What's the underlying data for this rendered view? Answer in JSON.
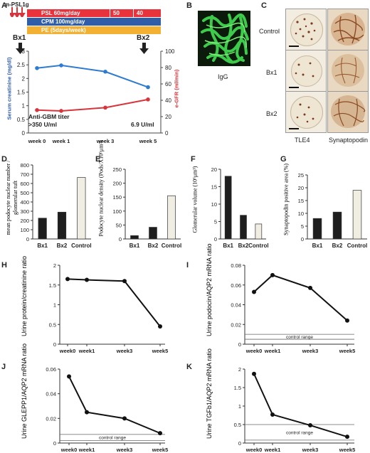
{
  "panels": {
    "A": "A",
    "B": "B",
    "C": "C",
    "D": "D",
    "E": "E",
    "F": "F",
    "G": "G",
    "H": "H",
    "I": "I",
    "J": "J",
    "K": "K"
  },
  "panel_a": {
    "mpsl": "m-PSL1g",
    "psl": "PSL 60mg/day",
    "psl50": "50",
    "psl40": "40",
    "cpm": "CPM 100mg/day",
    "pe": "PE (5days/week)",
    "bx1": "Bx1",
    "bx2": "Bx2",
    "anti_gbm_1": "Anti-GBM titer",
    "anti_gbm_2": ">350 U/ml",
    "anti_gbm_3": "6.9 U/ml",
    "colors": {
      "psl": "#e8323c",
      "cpm": "#2f5da8",
      "pe": "#f2b133"
    }
  },
  "panel_b": {
    "label": "IgG"
  },
  "panel_c": {
    "rows": [
      "Control",
      "Bx1",
      "Bx2"
    ],
    "cols": [
      "TLE4",
      "Synaptopodin"
    ]
  },
  "chart_data": [
    {
      "panel": "A",
      "type": "line",
      "categories": [
        "week 0",
        "week 1",
        "week 3",
        "week 5"
      ],
      "x": [
        0,
        1,
        3,
        5
      ],
      "ylabel": "Serum creatinine (mg/dl)",
      "y2label": "e-GFR (ml/min)",
      "ylim": [
        0,
        3
      ],
      "y2lim": [
        0,
        100
      ],
      "yticks": [
        "0",
        "0.5",
        "1",
        "1.5",
        "2",
        "2.5",
        "3"
      ],
      "y2ticks": [
        "0",
        "20",
        "40",
        "60",
        "80",
        "100"
      ],
      "series": [
        {
          "axis": "left",
          "color": "#2e7bcf",
          "values": [
            2.38,
            2.48,
            2.25,
            1.68
          ]
        },
        {
          "axis": "right",
          "color": "#d8343c",
          "values": [
            28,
            27,
            31,
            41
          ]
        }
      ]
    },
    {
      "panel": "D",
      "type": "bar",
      "categories": [
        "Bx1",
        "Bx2",
        "Control"
      ],
      "values": [
        225,
        290,
        665
      ],
      "ylabel": "mean podocyte nuclear number / glomerular tuft",
      "ylim": [
        0,
        800
      ],
      "yticks": [
        "0",
        "100",
        "200",
        "300",
        "400",
        "500",
        "600",
        "700",
        "800"
      ],
      "colors": [
        "#1e1e1e",
        "#1e1e1e",
        "#f0eee2"
      ]
    },
    {
      "panel": "E",
      "type": "bar",
      "categories": [
        "Bx1",
        "Bx2",
        "Control"
      ],
      "values": [
        12,
        42,
        155
      ],
      "ylabel": "Podocyte nuclear density (Pods/X10⁶μm³)",
      "ylim": [
        0,
        250
      ],
      "yticks": [
        "0",
        "50",
        "100",
        "150",
        "200",
        "250"
      ],
      "colors": [
        "#1e1e1e",
        "#1e1e1e",
        "#f0eee2"
      ]
    },
    {
      "panel": "F",
      "type": "bar",
      "categories": [
        "Bx1",
        "Bx2",
        "Control"
      ],
      "values": [
        18,
        6.8,
        4.3
      ],
      "ylabel": "Glomerular volume (10⁶μm³)",
      "ylim": [
        0,
        20
      ],
      "yticks": [
        "0",
        "5",
        "10",
        "15",
        "20"
      ],
      "colors": [
        "#1e1e1e",
        "#1e1e1e",
        "#f0eee2"
      ]
    },
    {
      "panel": "G",
      "type": "bar",
      "categories": [
        "Bx1",
        "Bx2",
        "Control"
      ],
      "values": [
        8,
        10.5,
        19
      ],
      "ylabel": "Synaptopodin positive area (%)",
      "ylim": [
        0,
        25
      ],
      "yticks": [
        "0",
        "5",
        "10",
        "15",
        "20",
        "25"
      ],
      "colors": [
        "#1e1e1e",
        "#1e1e1e",
        "#f0eee2"
      ]
    },
    {
      "panel": "H",
      "type": "line",
      "categories": [
        "week0",
        "week1",
        "week3",
        "week5"
      ],
      "x": [
        0,
        1,
        3,
        5
      ],
      "values": [
        1.65,
        1.63,
        1.6,
        0.45
      ],
      "ylabel": "Urine protein/creatinine ratio",
      "ylim": [
        0,
        2
      ],
      "yticks": [
        "0",
        "0.5",
        "1",
        "1.5",
        "2"
      ]
    },
    {
      "panel": "I",
      "type": "line",
      "categories": [
        "week0",
        "week1",
        "week3",
        "week5"
      ],
      "x": [
        0,
        1,
        3,
        5
      ],
      "values": [
        0.053,
        0.07,
        0.057,
        0.024
      ],
      "ylabel": "Urine podocin/AQP2 mRNA ratio",
      "ylim": [
        0,
        0.08
      ],
      "yticks": [
        "0",
        "0.02",
        "0.04",
        "0.06",
        "0.08"
      ],
      "control_range": [
        0.005,
        0.01
      ],
      "control_label": "control range"
    },
    {
      "panel": "J",
      "type": "line",
      "categories": [
        "week0",
        "week1",
        "week3",
        "week5"
      ],
      "x": [
        0,
        1,
        3,
        5
      ],
      "values": [
        0.054,
        0.025,
        0.02,
        0.008
      ],
      "ylabel": "Urine GLEPP1/AQP2 mRNA ratio",
      "ylim": [
        0,
        0.06
      ],
      "yticks": [
        "0",
        "0.02",
        "0.04",
        "0.06"
      ],
      "control_range": [
        0.002,
        0.007
      ],
      "control_label": "control range"
    },
    {
      "panel": "K",
      "type": "line",
      "categories": [
        "week0",
        "week1",
        "week3",
        "week5"
      ],
      "x": [
        0,
        1,
        3,
        5
      ],
      "values": [
        1.87,
        0.77,
        0.48,
        0.17
      ],
      "ylabel": "Urine TGFb1/AQP2 mRNA ratio",
      "ylim": [
        0,
        2
      ],
      "yticks": [
        "0",
        "0.5",
        "1",
        "1.5",
        "2"
      ],
      "control_range": [
        0.08,
        0.5
      ],
      "control_label": "control range"
    }
  ]
}
